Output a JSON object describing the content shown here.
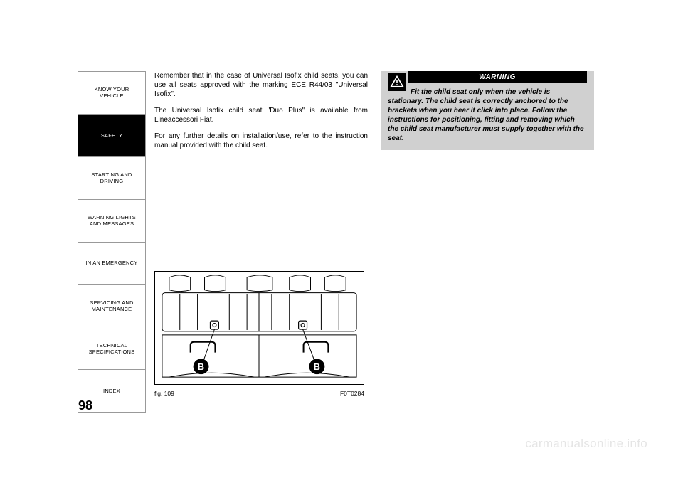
{
  "sidebar": {
    "items": [
      {
        "label": "KNOW YOUR\nVEHICLE",
        "active": false
      },
      {
        "label": "SAFETY",
        "active": true
      },
      {
        "label": "STARTING AND\nDRIVING",
        "active": false
      },
      {
        "label": "WARNING LIGHTS\nAND MESSAGES",
        "active": false
      },
      {
        "label": "IN AN EMERGENCY",
        "active": false
      },
      {
        "label": "SERVICING AND\nMAINTENANCE",
        "active": false
      },
      {
        "label": "TECHNICAL\nSPECIFICATIONS",
        "active": false
      },
      {
        "label": "INDEX",
        "active": false
      }
    ]
  },
  "content": {
    "para1": "Remember that in the case of Universal Isofix child seats, you can use all seats approved with the marking ECE R44/03 \"Universal Isofix\".",
    "para2": "The Universal Isofix child seat \"Duo Plus\" is available from Lineaccessori Fiat.",
    "para3": "For any further details on installation/use, refer to the instruction manual provided with the child seat."
  },
  "warning": {
    "header": "WARNING",
    "text": "Fit the child seat only when the vehicle is stationary. The child seat is correctly anchored to the brackets when you hear it click into place. Follow the instructions for positioning, fitting and removing which the child seat manufacturer must supply together with the seat."
  },
  "figure": {
    "label": "fig. 109",
    "code": "F0T0284",
    "badge": "B",
    "svg": {
      "bg": "#ffffff",
      "stroke": "#000000",
      "badge_bg": "#000000",
      "badge_fg": "#ffffff"
    }
  },
  "page_number": "98",
  "watermark": "carmanualsonline.info"
}
